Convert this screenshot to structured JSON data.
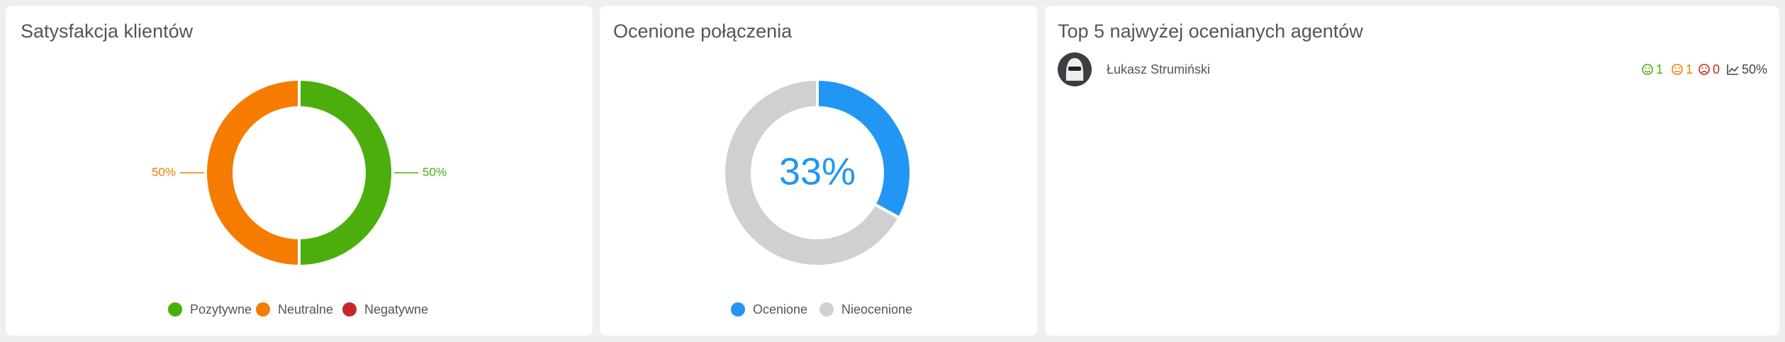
{
  "chart_data": [
    {
      "type": "donut",
      "title": "Satysfakcja klientów",
      "categories": [
        "Pozytywne",
        "Neutralne",
        "Negatywne"
      ],
      "values": [
        50,
        50,
        0
      ],
      "value_labels": [
        "50%",
        "50%",
        null
      ],
      "colors": [
        "#4cae0c",
        "#f57c00",
        "#c62828"
      ],
      "label_position": "outside"
    },
    {
      "type": "donut",
      "title": "Ocenione połączenia",
      "categories": [
        "Ocenione",
        "Nieocenione"
      ],
      "values": [
        33,
        67
      ],
      "value_labels": [
        "33%",
        null
      ],
      "colors": [
        "#2196f3",
        "#d0d0d0"
      ],
      "label_position": "center"
    }
  ],
  "agents_panel": {
    "title": "Top 5 najwyżej ocenianych agentów",
    "agents": [
      {
        "name": "Łukasz Strumiński",
        "positive": 1,
        "neutral": 1,
        "negative": 0,
        "score": "50%"
      }
    ]
  }
}
